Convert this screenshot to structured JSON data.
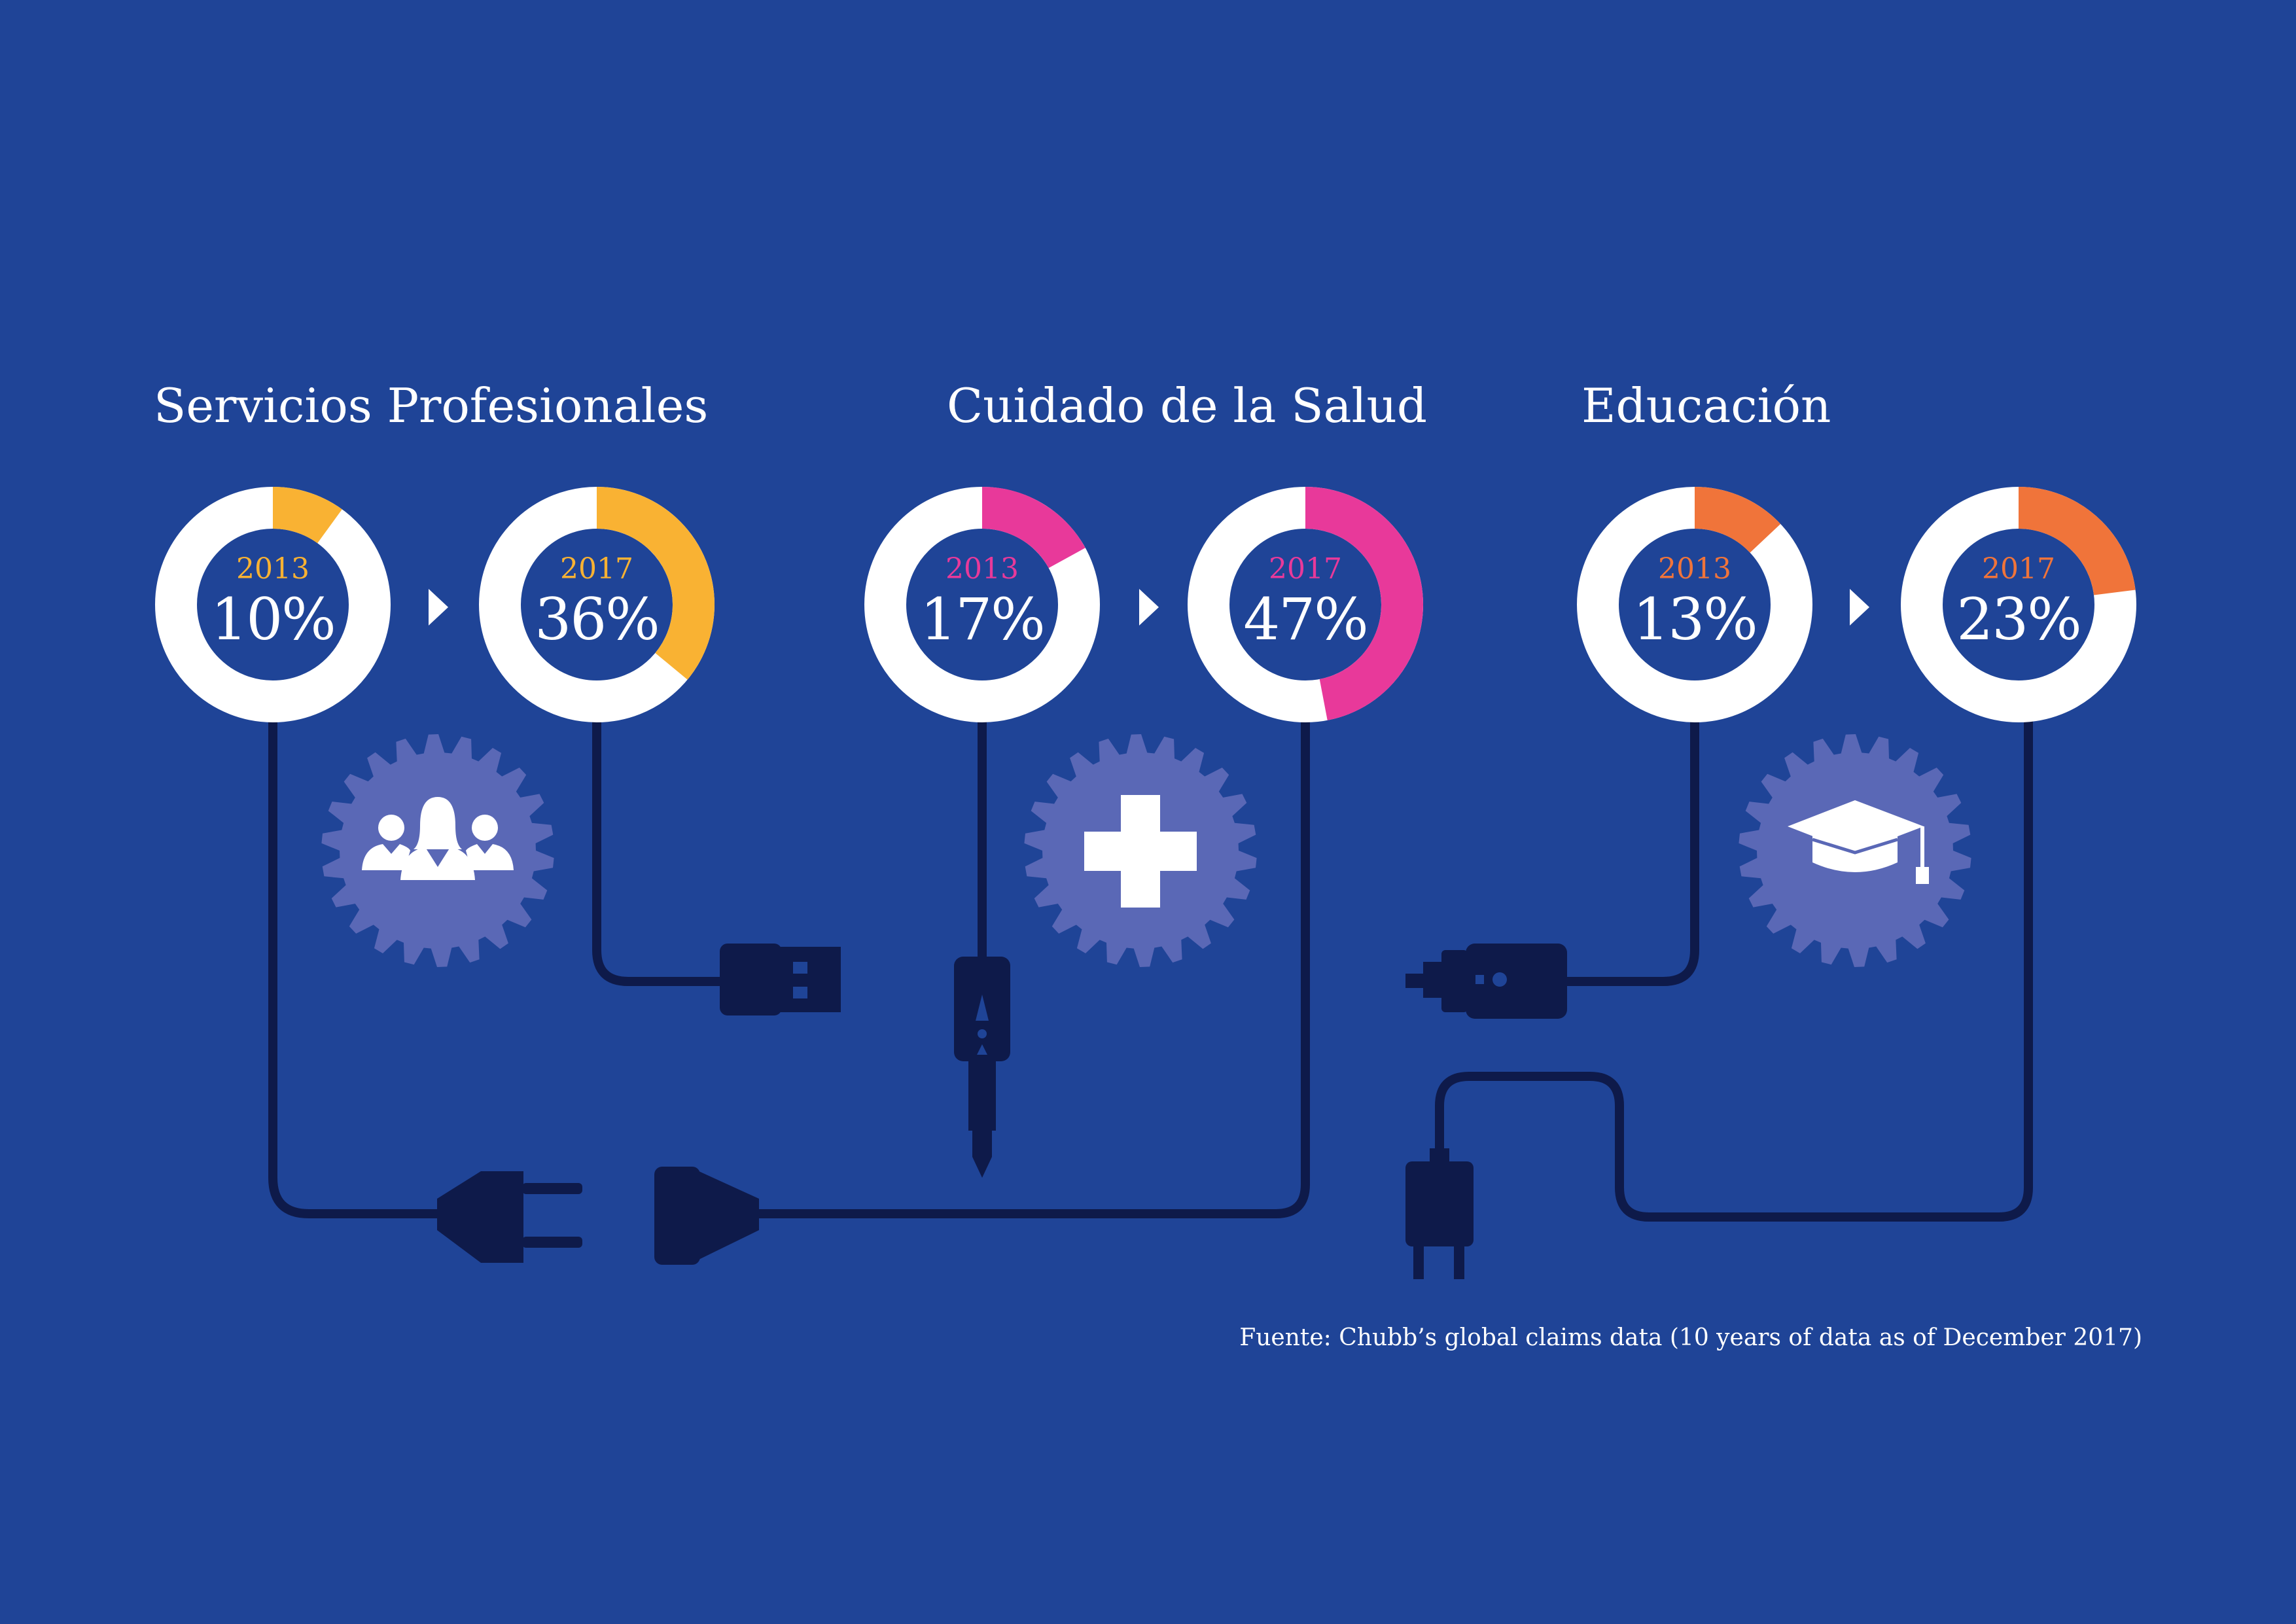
{
  "colors": {
    "background": "#1f4497",
    "ring_track": "#ffffff",
    "ring_inner": "#1f4497",
    "cable": "#0e1a4a",
    "gear": "#5a68b6"
  },
  "chart_data": [
    {
      "type": "donut",
      "title": "Servicios Profesionales",
      "accent": "#f9b233",
      "icon": "business-people-icon",
      "series": [
        {
          "year": "2013",
          "label": "10%",
          "value": 10
        },
        {
          "year": "2017",
          "label": "36%",
          "value": 36
        }
      ]
    },
    {
      "type": "donut",
      "title": "Cuidado de la Salud",
      "accent": "#e8399a",
      "icon": "medical-cross-icon",
      "series": [
        {
          "year": "2013",
          "label": "17%",
          "value": 17
        },
        {
          "year": "2017",
          "label": "47%",
          "value": 47
        }
      ]
    },
    {
      "type": "donut",
      "title": "Educación",
      "accent": "#f0743a",
      "icon": "graduation-cap-icon",
      "series": [
        {
          "year": "2013",
          "label": "13%",
          "value": 13
        },
        {
          "year": "2017",
          "label": "23%",
          "value": 23
        }
      ]
    }
  ],
  "footer": {
    "source": "Fuente: Chubb’s global claims data  (10 years of data as of December 2017)"
  }
}
